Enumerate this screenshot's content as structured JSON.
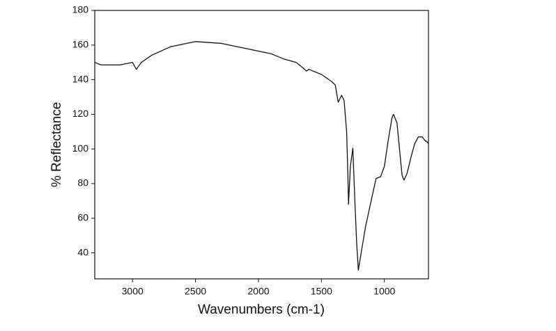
{
  "chart_data": {
    "type": "line",
    "x_label": "Wavenumbers (cm-1)",
    "y_label": "% Reflectance",
    "xlim": [
      3300,
      650
    ],
    "ylim": [
      25,
      180
    ],
    "xticks": [
      3000,
      2500,
      2000,
      1500,
      1000
    ],
    "yticks": [
      40,
      60,
      80,
      100,
      120,
      140,
      160,
      180
    ],
    "grid": false,
    "series": [
      {
        "color": "#111111",
        "x": [
          3300,
          3250,
          3100,
          3000,
          2970,
          2930,
          2850,
          2700,
          2500,
          2300,
          2100,
          1900,
          1800,
          1700,
          1650,
          1620,
          1600,
          1500,
          1420,
          1390,
          1367,
          1340,
          1320,
          1300,
          1290,
          1285,
          1270,
          1251,
          1235,
          1220,
          1207,
          1180,
          1150,
          1100,
          1066,
          1030,
          1000,
          970,
          940,
          928,
          900,
          880,
          860,
          845,
          820,
          790,
          760,
          730,
          700,
          680,
          660,
          650
        ],
        "values": [
          150,
          148.5,
          148.5,
          150,
          146,
          150,
          154,
          159,
          162,
          161,
          158,
          155,
          152,
          150,
          147,
          145,
          146,
          143,
          139,
          137,
          127,
          131,
          128,
          110,
          85,
          68,
          90,
          100.5,
          70,
          45,
          30,
          42,
          55,
          72,
          83,
          84,
          90,
          105,
          118,
          120,
          115,
          100,
          85,
          82,
          86,
          95,
          103,
          107,
          107,
          105,
          104,
          103
        ]
      }
    ]
  }
}
